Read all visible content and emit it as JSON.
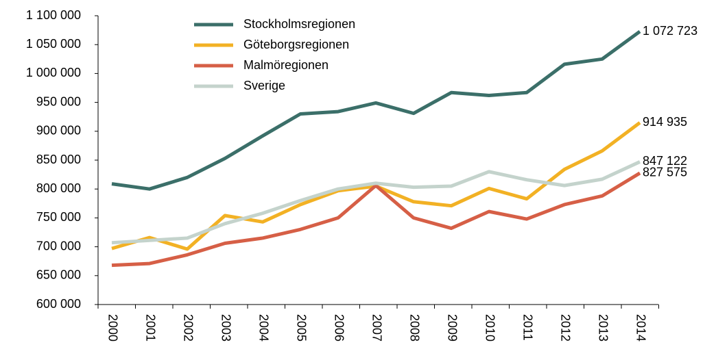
{
  "chart_data": {
    "type": "line",
    "categories": [
      "2000",
      "2001",
      "2002",
      "2003",
      "2004",
      "2005",
      "2006",
      "2007",
      "2008",
      "2009",
      "2010",
      "2011",
      "2012",
      "2013",
      "2014"
    ],
    "ylim": [
      600000,
      1100000
    ],
    "yticks": [
      {
        "value": 600000,
        "label": "600 000"
      },
      {
        "value": 650000,
        "label": "650 000"
      },
      {
        "value": 700000,
        "label": "700 000"
      },
      {
        "value": 750000,
        "label": "750 000"
      },
      {
        "value": 800000,
        "label": "800 000"
      },
      {
        "value": 850000,
        "label": "850 000"
      },
      {
        "value": 900000,
        "label": "900 000"
      },
      {
        "value": 950000,
        "label": "950 000"
      },
      {
        "value": 1000000,
        "label": "1 000 000"
      },
      {
        "value": 1050000,
        "label": "1 050 000"
      },
      {
        "value": 1100000,
        "label": "1 100 000"
      }
    ],
    "series": [
      {
        "name": "Stockholmsregionen",
        "color": "#3b6f69",
        "values": [
          809000,
          800000,
          820000,
          853000,
          892000,
          930000,
          934000,
          949000,
          931000,
          967000,
          962000,
          967000,
          1016000,
          1025000,
          1072723
        ],
        "value_labels": [
          null,
          null,
          null,
          null,
          null,
          null,
          null,
          null,
          null,
          null,
          null,
          null,
          null,
          null,
          "1 072 723"
        ]
      },
      {
        "name": "Göteborgsregionen",
        "color": "#f2b124",
        "values": [
          697000,
          716000,
          696000,
          754000,
          743000,
          773000,
          797000,
          805000,
          778000,
          771000,
          801000,
          783000,
          834000,
          866000,
          914935
        ],
        "value_labels": [
          null,
          null,
          null,
          null,
          null,
          null,
          null,
          null,
          null,
          null,
          null,
          null,
          null,
          null,
          "914 935"
        ]
      },
      {
        "name": "Malmöregionen",
        "color": "#d65f46",
        "values": [
          668000,
          671000,
          686000,
          706000,
          715000,
          730000,
          750000,
          806000,
          750000,
          732000,
          761000,
          748000,
          773000,
          788000,
          827575
        ],
        "value_labels": [
          null,
          null,
          null,
          null,
          null,
          null,
          null,
          null,
          null,
          null,
          null,
          null,
          null,
          null,
          "827 575"
        ]
      },
      {
        "name": "Sverige",
        "color": "#c4d3cc",
        "values": [
          707000,
          711000,
          715000,
          740000,
          758000,
          780000,
          800000,
          810000,
          803000,
          805000,
          830000,
          816000,
          806000,
          817000,
          847122
        ],
        "value_labels": [
          null,
          null,
          null,
          null,
          null,
          null,
          null,
          null,
          null,
          null,
          null,
          null,
          null,
          null,
          "847 122"
        ]
      }
    ]
  }
}
